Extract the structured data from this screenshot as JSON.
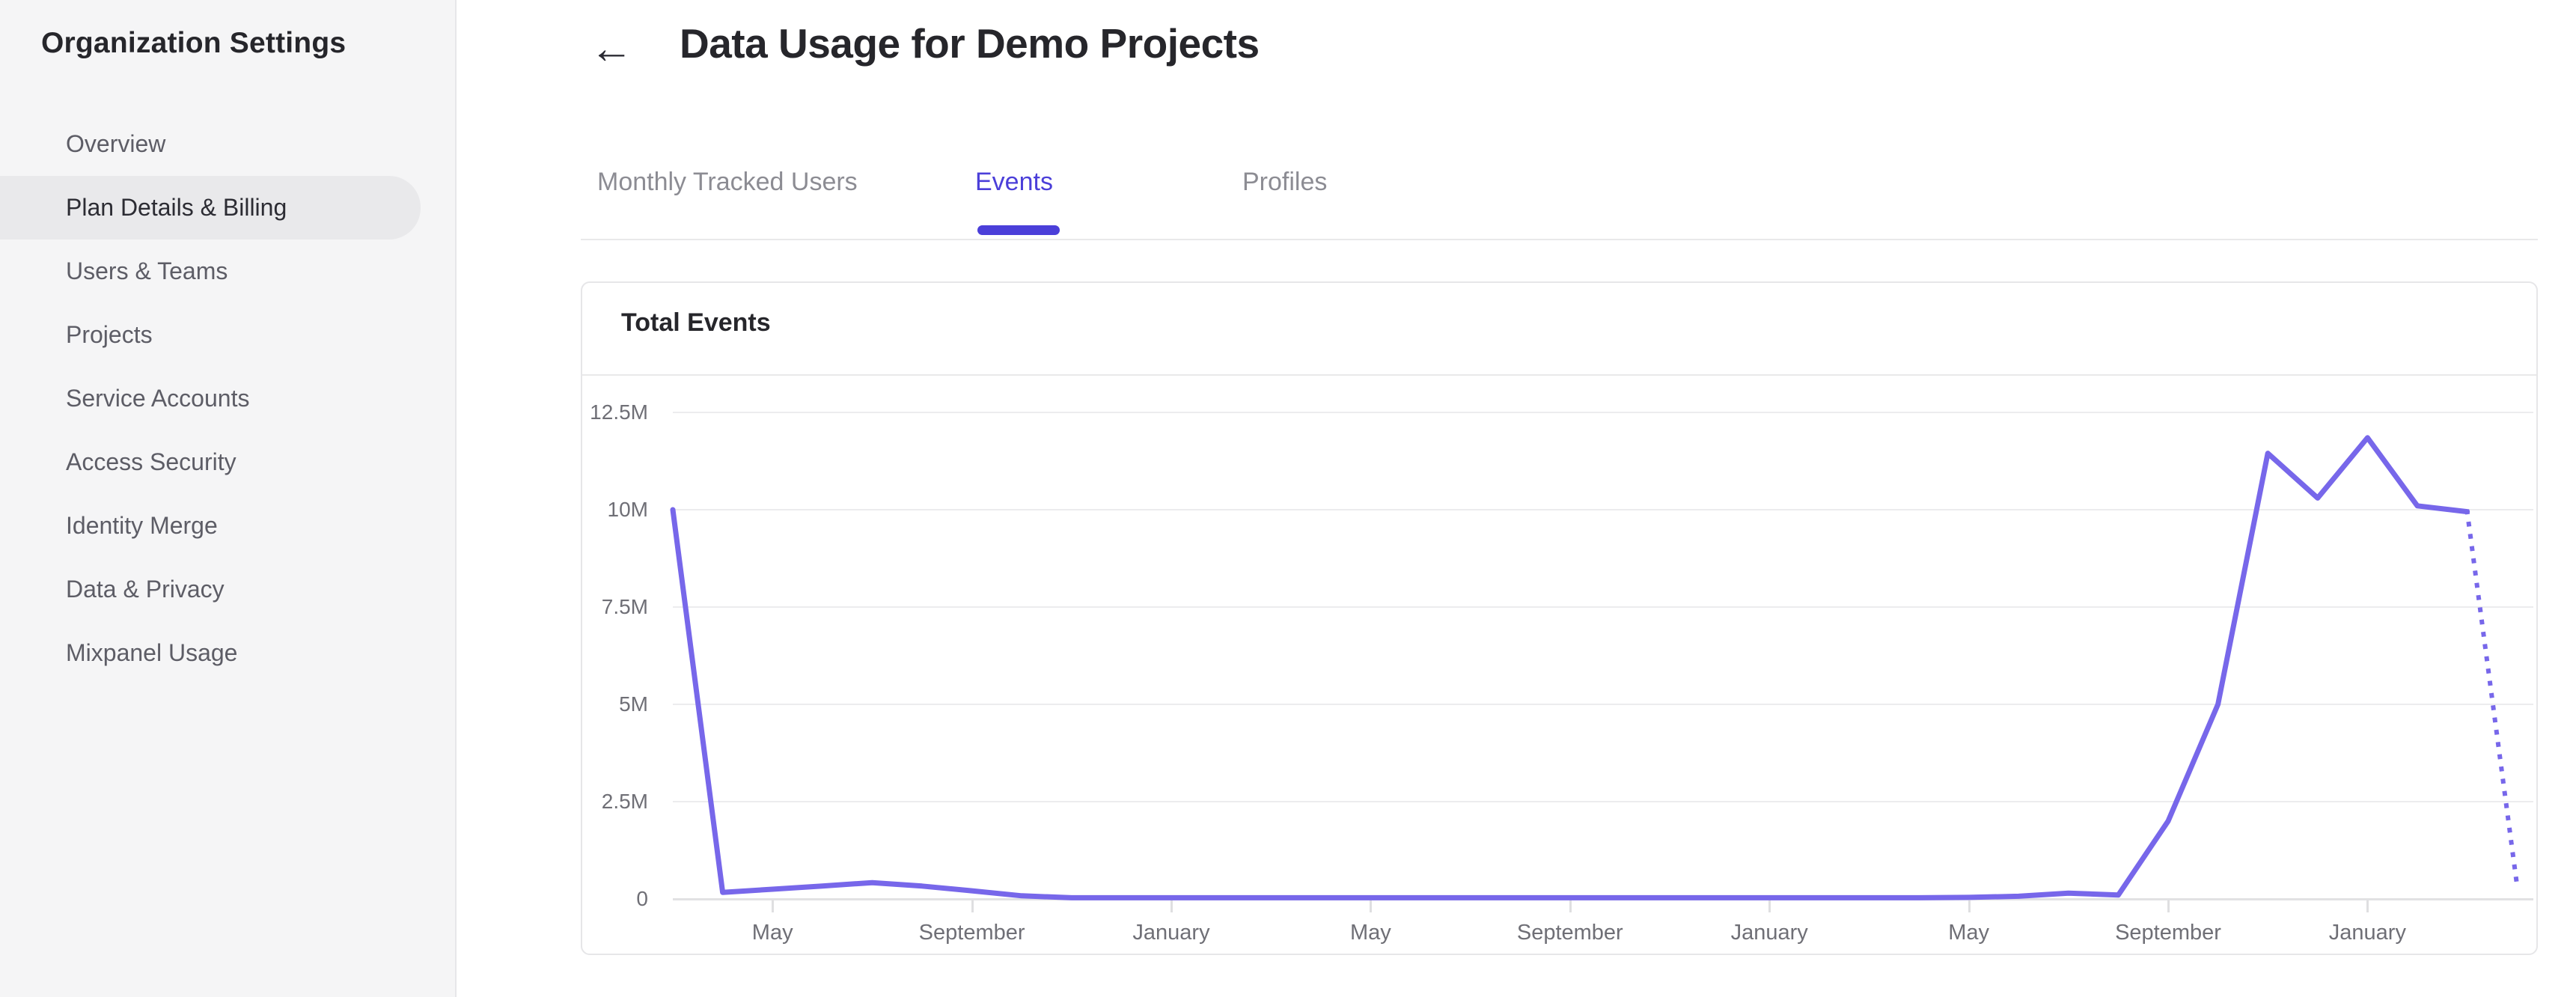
{
  "sidebar": {
    "title": "Organization Settings",
    "items": [
      {
        "label": "Overview",
        "active": false
      },
      {
        "label": "Plan Details & Billing",
        "active": true
      },
      {
        "label": "Users & Teams",
        "active": false
      },
      {
        "label": "Projects",
        "active": false
      },
      {
        "label": "Service Accounts",
        "active": false
      },
      {
        "label": "Access Security",
        "active": false
      },
      {
        "label": "Identity Merge",
        "active": false
      },
      {
        "label": "Data & Privacy",
        "active": false
      },
      {
        "label": "Mixpanel Usage",
        "active": false
      }
    ]
  },
  "header": {
    "back_icon": "←",
    "title": "Data Usage for Demo Projects"
  },
  "tabs": [
    {
      "label": "Monthly Tracked Users",
      "active": false
    },
    {
      "label": "Events",
      "active": true
    },
    {
      "label": "Profiles",
      "active": false
    }
  ],
  "card": {
    "title": "Total Events"
  },
  "colors": {
    "accent_purple": "#4b3fd9",
    "line_purple": "#7767ea",
    "sidebar_bg": "#f5f5f6",
    "active_pill_bg": "#e9e9eb",
    "gridline": "#ececee",
    "axis_text": "#6f6f76"
  },
  "chart_data": {
    "type": "line",
    "title": "Total Events",
    "unit": "events, millions",
    "grid": true,
    "legend": false,
    "ylim": [
      0,
      12.5
    ],
    "y_ticks": [
      {
        "label": "12.5M",
        "value": 12.5
      },
      {
        "label": "10M",
        "value": 10
      },
      {
        "label": "7.5M",
        "value": 7.5
      },
      {
        "label": "5M",
        "value": 5
      },
      {
        "label": "2.5M",
        "value": 2.5
      },
      {
        "label": "0",
        "value": 0
      }
    ],
    "x_ticks": [
      {
        "month_index": 2,
        "label": "May"
      },
      {
        "month_index": 6,
        "label": "September"
      },
      {
        "month_index": 10,
        "label": "January"
      },
      {
        "month_index": 14,
        "label": "May"
      },
      {
        "month_index": 18,
        "label": "September"
      },
      {
        "month_index": 22,
        "label": "January"
      },
      {
        "month_index": 26,
        "label": "May"
      },
      {
        "month_index": 30,
        "label": "September"
      },
      {
        "month_index": 34,
        "label": "January"
      }
    ],
    "series": [
      {
        "name": "Total Events",
        "color": "#7767ea",
        "dashed_from_index": 36,
        "values_millions": [
          10.0,
          0.17,
          0.25,
          0.33,
          0.42,
          0.33,
          0.21,
          0.08,
          0.03,
          0.03,
          0.03,
          0.03,
          0.03,
          0.03,
          0.03,
          0.03,
          0.03,
          0.03,
          0.03,
          0.03,
          0.03,
          0.03,
          0.03,
          0.03,
          0.03,
          0.03,
          0.04,
          0.07,
          0.15,
          0.1,
          2.0,
          5.0,
          11.45,
          10.3,
          11.85,
          10.1,
          9.95,
          0.35
        ]
      }
    ]
  }
}
